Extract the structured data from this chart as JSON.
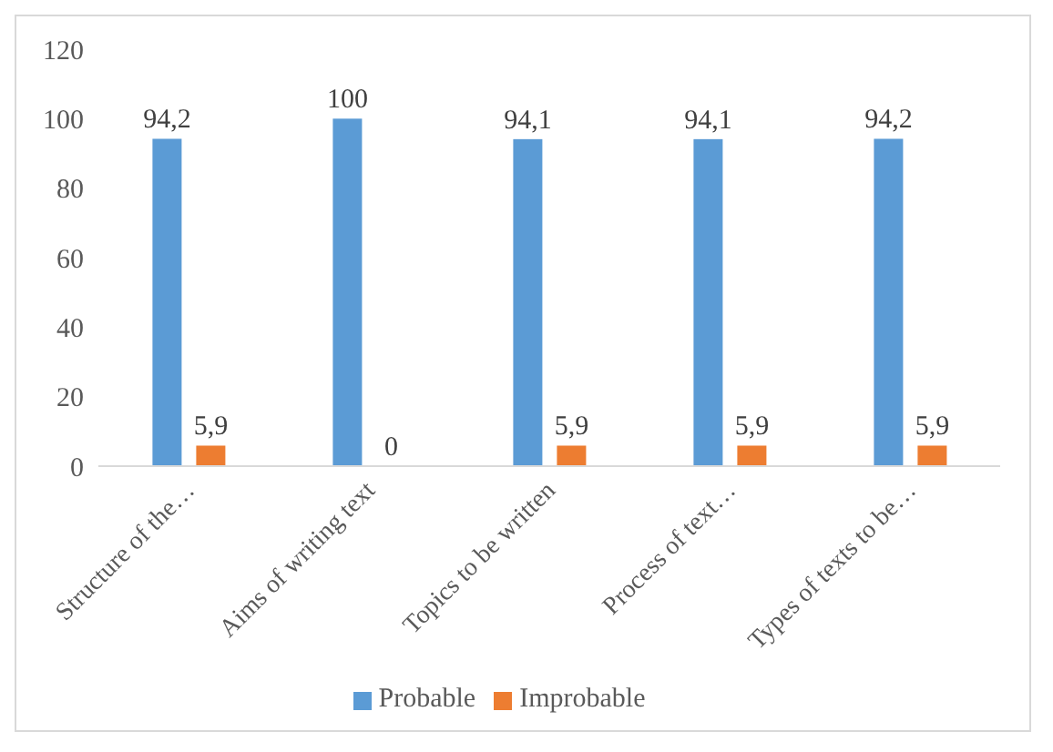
{
  "chart_data": {
    "type": "bar",
    "categories": [
      "Structure of the…",
      "Aims of writing text",
      "Topics to be written",
      "Process of text…",
      "Types of texts to be…"
    ],
    "series": [
      {
        "name": "Probable",
        "color": "#5b9bd5",
        "values": [
          94.2,
          100,
          94.1,
          94.1,
          94.2
        ],
        "value_labels": [
          "94,2",
          "100",
          "94,1",
          "94,1",
          "94,2"
        ]
      },
      {
        "name": "Improbable",
        "color": "#ed7d31",
        "values": [
          5.9,
          0,
          5.9,
          5.9,
          5.9
        ],
        "value_labels": [
          "5,9",
          "0",
          "5,9",
          "5,9",
          "5,9"
        ]
      }
    ],
    "ylim": [
      0,
      120
    ],
    "yticks": [
      0,
      20,
      40,
      60,
      80,
      100,
      120
    ],
    "legend": "bottom"
  }
}
